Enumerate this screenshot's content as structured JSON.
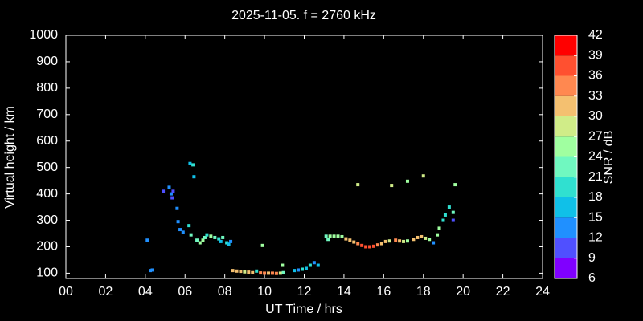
{
  "chart_data": {
    "type": "scatter",
    "title": "2025-11-05. f = 2760 kHz",
    "x_label": "UT Time / hrs",
    "y_label": "Virtual height / km",
    "xlim": [
      0,
      24
    ],
    "xticks": [
      {
        "value": 0,
        "label": "00"
      },
      {
        "value": 2,
        "label": "02"
      },
      {
        "value": 4,
        "label": "04"
      },
      {
        "value": 6,
        "label": "06"
      },
      {
        "value": 8,
        "label": "08"
      },
      10,
      12,
      14,
      16,
      18,
      20,
      22,
      24
    ],
    "ylim": [
      80,
      1000
    ],
    "yticks": [
      100,
      200,
      300,
      400,
      500,
      600,
      700,
      800,
      900,
      1000
    ],
    "grid": false,
    "x": [
      4.1,
      4.25,
      4.35,
      4.9,
      5.2,
      5.3,
      5.4,
      5.35,
      5.6,
      5.65,
      5.75,
      5.9,
      6.2,
      6.25,
      6.4,
      6.45,
      6.3,
      6.6,
      6.75,
      6.9,
      7.0,
      7.1,
      7.3,
      7.5,
      7.7,
      7.8,
      7.9,
      8.1,
      8.2,
      8.3,
      8.4,
      8.6,
      8.8,
      9.0,
      9.2,
      9.4,
      9.6,
      9.8,
      10.0,
      10.2,
      10.4,
      10.6,
      10.8,
      10.9,
      10.95,
      9.9,
      11.5,
      11.7,
      11.9,
      12.1,
      12.3,
      12.5,
      12.7,
      13.1,
      13.2,
      13.3,
      13.5,
      13.7,
      13.9,
      14.1,
      14.3,
      14.5,
      14.7,
      14.9,
      15.1,
      15.3,
      15.5,
      15.7,
      15.9,
      16.1,
      16.3,
      16.6,
      16.8,
      17.0,
      17.2,
      17.5,
      17.7,
      17.9,
      18.1,
      18.3,
      18.5,
      18.7,
      18.8,
      19.0,
      19.1,
      19.3,
      19.5,
      19.5,
      19.6,
      14.7,
      16.4,
      17.2,
      18.0
    ],
    "values": [
      225,
      110,
      112,
      410,
      425,
      400,
      410,
      385,
      345,
      295,
      265,
      255,
      280,
      515,
      510,
      465,
      245,
      225,
      215,
      225,
      235,
      245,
      240,
      235,
      230,
      220,
      235,
      215,
      210,
      220,
      110,
      108,
      107,
      105,
      104,
      102,
      108,
      101,
      100,
      100,
      100,
      99,
      100,
      130,
      102,
      205,
      110,
      112,
      115,
      118,
      130,
      140,
      130,
      240,
      228,
      240,
      240,
      240,
      238,
      230,
      225,
      218,
      212,
      205,
      200,
      200,
      202,
      207,
      212,
      220,
      222,
      225,
      222,
      220,
      222,
      228,
      235,
      238,
      232,
      228,
      215,
      245,
      270,
      300,
      320,
      350,
      330,
      300,
      435,
      435,
      432,
      448,
      468
    ],
    "snr": [
      12,
      13,
      13,
      10,
      12,
      12,
      10,
      11,
      14,
      13,
      13,
      13,
      20,
      16,
      18,
      16,
      22,
      22,
      26,
      24,
      22,
      20,
      24,
      22,
      20,
      16,
      22,
      18,
      16,
      14,
      31,
      31,
      30,
      28,
      32,
      32,
      18,
      33,
      33,
      31,
      35,
      33,
      28,
      24,
      22,
      26,
      16,
      14,
      18,
      16,
      18,
      14,
      16,
      22,
      22,
      24,
      24,
      24,
      26,
      30,
      32,
      32,
      34,
      36,
      38,
      38,
      36,
      34,
      32,
      30,
      28,
      34,
      32,
      28,
      24,
      30,
      32,
      30,
      28,
      26,
      12,
      24,
      26,
      20,
      18,
      20,
      22,
      10,
      24,
      28,
      27,
      26,
      27
    ],
    "colorbar": {
      "label": "SNR / dB",
      "lim": [
        6,
        42
      ],
      "ticks": [
        6,
        9,
        12,
        15,
        18,
        21,
        24,
        27,
        30,
        33,
        36,
        39,
        42
      ],
      "colors": [
        "#8000ff",
        "#5050ff",
        "#2090ff",
        "#10c0e8",
        "#30e0d0",
        "#70f8c0",
        "#a0ffa0",
        "#d0ec88",
        "#f4c070",
        "#ff8850",
        "#ff5030",
        "#ff0000"
      ]
    }
  }
}
